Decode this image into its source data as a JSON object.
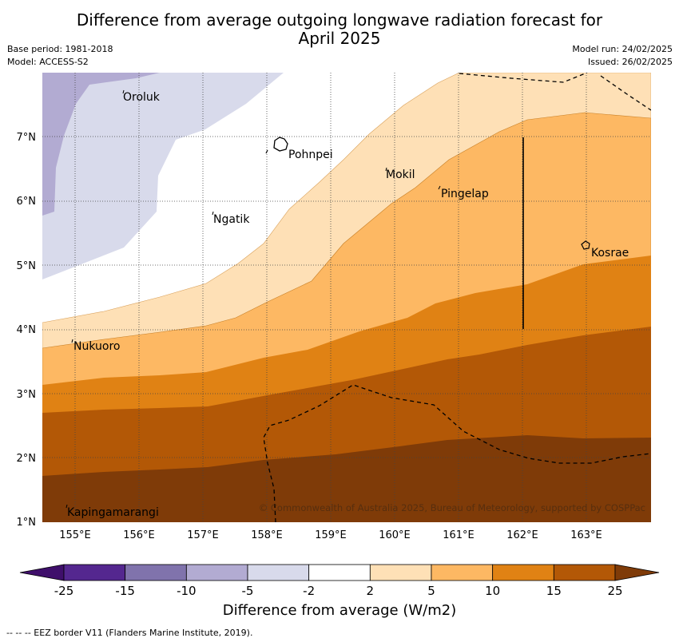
{
  "title_line1": "Difference from average outgoing longwave radiation forecast for",
  "title_line2": "April 2025",
  "base_period": "Base period: 1981-2018",
  "model": "Model: ACCESS-S2",
  "model_run": "Model run: 24/02/2025",
  "issued": "Issued: 26/02/2025",
  "copyright": "© Commonwealth of Australia 2025, Bureau of Meteorology, supported by COSPPac",
  "lon_labels": [
    "155°E",
    "156°E",
    "157°E",
    "158°E",
    "159°E",
    "160°E",
    "161°E",
    "162°E",
    "163°E"
  ],
  "lat_labels": [
    "1°N",
    "2°N",
    "3°N",
    "4°N",
    "5°N",
    "6°N",
    "7°N"
  ],
  "places": [
    {
      "name": "Oroluk"
    },
    {
      "name": "Pohnpei"
    },
    {
      "name": "Mokil"
    },
    {
      "name": "Pingelap"
    },
    {
      "name": "Ngatik"
    },
    {
      "name": "Kosrae"
    },
    {
      "name": "Nukuoro"
    },
    {
      "name": "Kapingamarangi"
    }
  ],
  "colorbar": {
    "title": "Difference from average (W/m2)",
    "tick_labels": [
      "-25",
      "-15",
      "-10",
      "-5",
      "-2",
      "2",
      "5",
      "10",
      "15",
      "25"
    ],
    "colors": [
      "#3f0f6b",
      "#54278f",
      "#8073ac",
      "#b2abd2",
      "#d8daeb",
      "#ffffff",
      "#fee0b6",
      "#fdb863",
      "#e08214",
      "#b35806",
      "#7f3b08"
    ]
  },
  "footer": "-- --  -- EEZ border V11 (Flanders Marine Institute, 2019)."
}
